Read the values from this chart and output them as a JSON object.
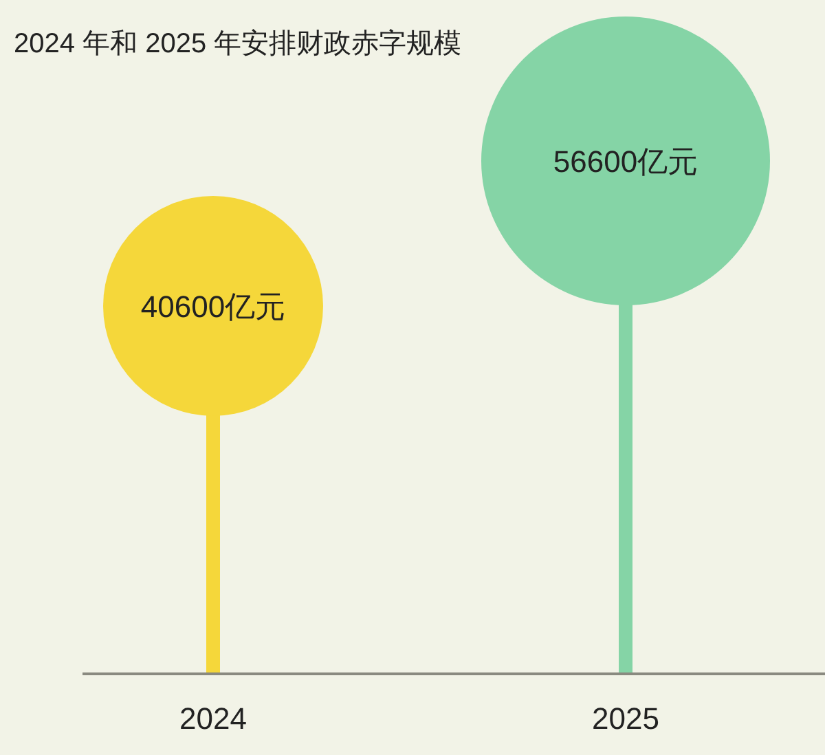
{
  "chart_data": {
    "type": "lollipop",
    "title": "2024 年和 2025 年安排财政赤字规模",
    "categories": [
      "2024",
      "2025"
    ],
    "values": [
      40600,
      56600
    ],
    "colors": [
      "#f5d73a",
      "#85d4a6"
    ],
    "value_labels": [
      "40600亿元",
      "56600亿元"
    ]
  }
}
